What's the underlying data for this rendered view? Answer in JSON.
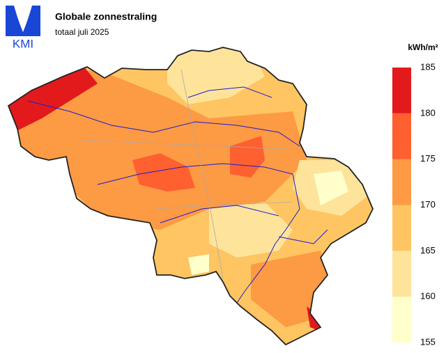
{
  "header": {
    "title": "Globale zonnestraling",
    "subtitle": "totaal juli 2025"
  },
  "logo": {
    "text": "KMI"
  },
  "legend": {
    "unit": "kWh/m²",
    "ticks": [
      155,
      160,
      165,
      170,
      175,
      180,
      185
    ],
    "colors": [
      "#ffffcc",
      "#fee39b",
      "#fec562",
      "#fd9a44",
      "#fe6030",
      "#e31a1c"
    ]
  }
}
